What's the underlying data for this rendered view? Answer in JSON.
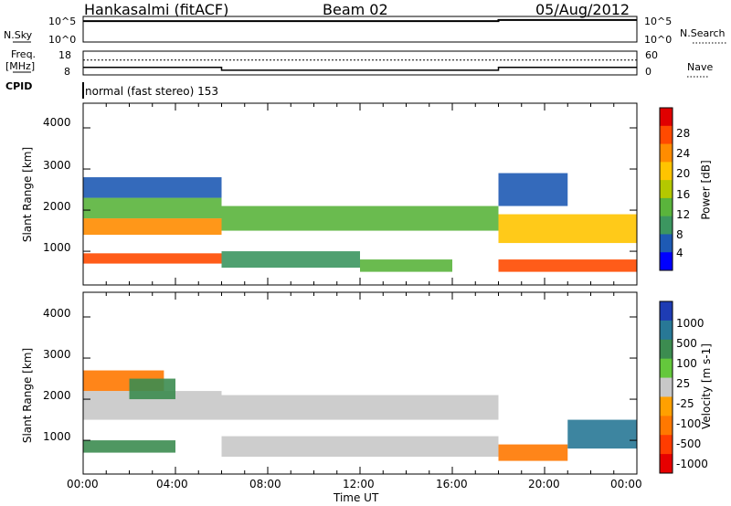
{
  "header": {
    "station": "Hankasalmi (fitACF)",
    "beam": "Beam 02",
    "date": "05/Aug/2012"
  },
  "strip_labels": {
    "nsky": "N.Sky",
    "nsky_ticks": [
      "10^5",
      "10^0"
    ],
    "nsearch": "N.Search",
    "nsearch_ticks": [
      "10^5",
      "10^0"
    ],
    "freq": "Freq.",
    "freq_unit": "[MHz]",
    "freq_ticks": [
      "18",
      "8"
    ],
    "nave": "Nave",
    "nave_ticks": [
      "60",
      "0"
    ],
    "cpid": "CPID",
    "cpid_text": "normal (fast stereo) 153"
  },
  "axes": {
    "ylabel": "Slant Range [km]",
    "y_ticks": [
      "4000",
      "3000",
      "2000",
      "1000"
    ],
    "x_ticks": [
      "00:00",
      "04:00",
      "08:00",
      "12:00",
      "16:00",
      "20:00",
      "00:00"
    ],
    "xlabel": "Time UT"
  },
  "power_scale": {
    "label": "Power [dB]",
    "ticks": [
      "28",
      "24",
      "20",
      "16",
      "12",
      "8",
      "4"
    ],
    "colors": [
      "#e00000",
      "#ff4a00",
      "#ff8c00",
      "#ffc400",
      "#b4c800",
      "#5ab43c",
      "#3c9660",
      "#1e5ab4",
      "#0000ff"
    ]
  },
  "velocity_scale": {
    "label": "Velocity [m s-1]",
    "ticks": [
      "1000",
      "500",
      "100",
      "25",
      "-25",
      "-100",
      "-500",
      "-1000"
    ],
    "colors": [
      "#1e3cb4",
      "#287896",
      "#3c8c50",
      "#64c83c",
      "#c8c8c8",
      "#ffa000",
      "#ff7800",
      "#ff3c00",
      "#e60000"
    ]
  },
  "chart_data": [
    {
      "type": "line",
      "title": "N.Sky / N.Search",
      "x_range_hours": [
        0,
        24
      ],
      "series": [
        {
          "name": "N.Sky",
          "x": [
            0,
            6,
            12,
            18,
            24
          ],
          "values": [
            50000,
            50000,
            50000,
            100000,
            100000
          ]
        }
      ]
    },
    {
      "type": "line",
      "title": "Freq. / Nave",
      "x_range_hours": [
        0,
        24
      ],
      "series": [
        {
          "name": "Freq.",
          "x": [
            0,
            6,
            6,
            18,
            18,
            24
          ],
          "values": [
            10,
            10,
            8,
            8,
            10,
            10
          ]
        },
        {
          "name": "Nave",
          "x": [
            0,
            24
          ],
          "values": [
            40,
            40
          ]
        }
      ]
    },
    {
      "type": "heatmap",
      "title": "Power [dB]",
      "x_range_hours": [
        0,
        24
      ],
      "ylim": [
        180,
        4600
      ],
      "bands": [
        {
          "t0": 0.0,
          "t1": 6.0,
          "r0": 1400,
          "r1": 1800,
          "value": 22
        },
        {
          "t0": 0.0,
          "t1": 6.0,
          "r0": 1800,
          "r1": 2300,
          "value": 14
        },
        {
          "t0": 0.0,
          "t1": 6.0,
          "r0": 700,
          "r1": 950,
          "value": 26
        },
        {
          "t0": 0.0,
          "t1": 6.0,
          "r0": 2300,
          "r1": 2800,
          "value": 7
        },
        {
          "t0": 6.0,
          "t1": 18.0,
          "r0": 1500,
          "r1": 2100,
          "value": 12
        },
        {
          "t0": 6.0,
          "t1": 12.0,
          "r0": 600,
          "r1": 1000,
          "value": 8
        },
        {
          "t0": 12.0,
          "t1": 16.0,
          "r0": 500,
          "r1": 800,
          "value": 12
        },
        {
          "t0": 18.0,
          "t1": 24.0,
          "r0": 1200,
          "r1": 1900,
          "value": 20
        },
        {
          "t0": 18.0,
          "t1": 24.0,
          "r0": 500,
          "r1": 800,
          "value": 26
        },
        {
          "t0": 18.0,
          "t1": 21.0,
          "r0": 2100,
          "r1": 2900,
          "value": 6
        }
      ]
    },
    {
      "type": "heatmap",
      "title": "Velocity [m s-1]",
      "x_range_hours": [
        0,
        24
      ],
      "ylim": [
        180,
        4600
      ],
      "bands": [
        {
          "t0": 0.0,
          "t1": 6.0,
          "r0": 1500,
          "r1": 2200,
          "value": 0
        },
        {
          "t0": 0.0,
          "t1": 3.5,
          "r0": 2200,
          "r1": 2700,
          "value": -300
        },
        {
          "t0": 2.0,
          "t1": 4.0,
          "r0": 2000,
          "r1": 2500,
          "value": 200
        },
        {
          "t0": 0.0,
          "t1": 4.0,
          "r0": 700,
          "r1": 1000,
          "value": 150
        },
        {
          "t0": 6.0,
          "t1": 18.0,
          "r0": 1500,
          "r1": 2100,
          "value": 0
        },
        {
          "t0": 6.0,
          "t1": 18.0,
          "r0": 600,
          "r1": 1100,
          "value": 0
        },
        {
          "t0": 18.0,
          "t1": 21.0,
          "r0": 500,
          "r1": 900,
          "value": -300
        },
        {
          "t0": 21.0,
          "t1": 24.0,
          "r0": 800,
          "r1": 1500,
          "value": 600
        }
      ]
    }
  ]
}
